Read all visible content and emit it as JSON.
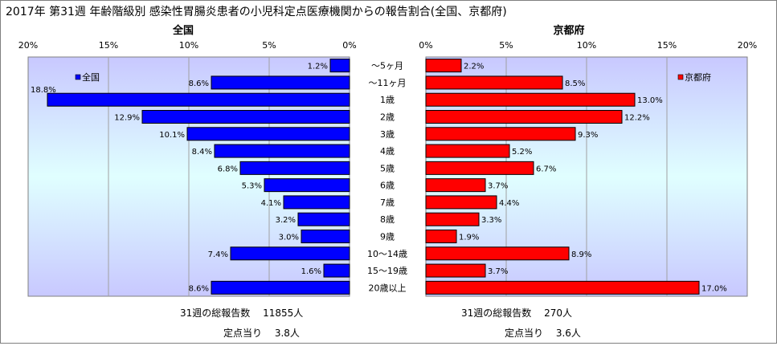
{
  "title": "2017年 第31週 年齢階級別 感染性胃腸炎患者の小児科定点医療機関からの報告割合(全国、京都府)",
  "chart_data": {
    "type": "bar",
    "orientation": "horizontal",
    "categories": [
      "～5ヶ月",
      "～11ヶ月",
      "1歳",
      "2歳",
      "3歳",
      "4歳",
      "5歳",
      "6歳",
      "7歳",
      "8歳",
      "9歳",
      "10～14歳",
      "15～19歳",
      "20歳以上"
    ],
    "xlim": [
      0,
      20
    ],
    "ticks": [
      "0%",
      "5%",
      "10%",
      "15%",
      "20%"
    ],
    "panels": [
      {
        "title": "全国",
        "legend": "全国",
        "legend_position": "top-left",
        "color": "#0000ff",
        "direction": "left",
        "values": [
          1.2,
          8.6,
          18.8,
          12.9,
          10.1,
          8.4,
          6.8,
          5.3,
          4.1,
          3.2,
          3.0,
          7.4,
          1.6,
          8.6
        ],
        "labels": [
          "1.2%",
          "8.6%",
          "18.8%",
          "12.9%",
          "10.1%",
          "8.4%",
          "6.8%",
          "5.3%",
          "4.1%",
          "3.2%",
          "3.0%",
          "7.4%",
          "1.6%",
          "8.6%"
        ]
      },
      {
        "title": "京都府",
        "legend": "京都府",
        "legend_position": "top-right",
        "color": "#ff0000",
        "direction": "right",
        "values": [
          2.2,
          8.5,
          13.0,
          12.2,
          9.3,
          5.2,
          6.7,
          3.7,
          4.4,
          3.3,
          1.9,
          8.9,
          3.7,
          17.0
        ],
        "labels": [
          "2.2%",
          "8.5%",
          "13.0%",
          "12.2%",
          "9.3%",
          "5.2%",
          "6.7%",
          "3.7%",
          "4.4%",
          "3.3%",
          "1.9%",
          "8.9%",
          "3.7%",
          "17.0%"
        ]
      }
    ],
    "grid": true
  },
  "footer": {
    "national": {
      "total": "31週の総報告数　 11855人",
      "per_site": "定点当り　 3.8人"
    },
    "kyoto": {
      "total": "31週の総報告数　 270人",
      "per_site": "定点当り　 3.6人"
    }
  }
}
